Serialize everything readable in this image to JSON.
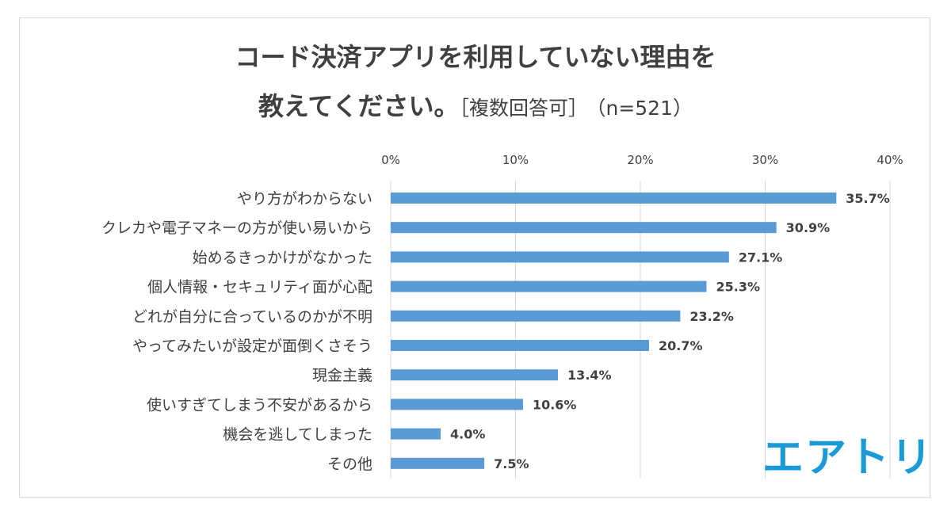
{
  "title": {
    "line1": "コード決済アプリを利用していない理由を",
    "line2": "教えてください。",
    "note": "［複数回答可］",
    "sample": "（n=521）"
  },
  "brand": {
    "logo_text": "エアトリ",
    "color": "#1a9ad6"
  },
  "chart_data": {
    "type": "bar",
    "orientation": "horizontal",
    "categories": [
      "やり方がわからない",
      "クレカや電子マネーの方が使い易いから",
      "始めるきっかけがなかった",
      "個人情報・セキュリティ面が心配",
      "どれが自分に合っているのかが不明",
      "やってみたいが設定が面倒くさそう",
      "現金主義",
      "使いすぎてしまう不安があるから",
      "機会を逃してしまった",
      "その他"
    ],
    "values": [
      35.7,
      30.9,
      27.1,
      25.3,
      23.2,
      20.7,
      13.4,
      10.6,
      4.0,
      7.5
    ],
    "value_labels": [
      "35.7%",
      "30.9%",
      "27.1%",
      "25.3%",
      "23.2%",
      "20.7%",
      "13.4%",
      "10.6%",
      "4.0%",
      "7.5%"
    ],
    "xlim": [
      0,
      40
    ],
    "ticks": [
      0,
      10,
      20,
      30,
      40
    ],
    "tick_labels": [
      "0%",
      "10%",
      "20%",
      "30%",
      "40%"
    ],
    "axis_position": "top",
    "grid": true,
    "bar_color": "#5b9bd5",
    "gridline_color": "#d9d9d9",
    "text_color": "#404040"
  }
}
